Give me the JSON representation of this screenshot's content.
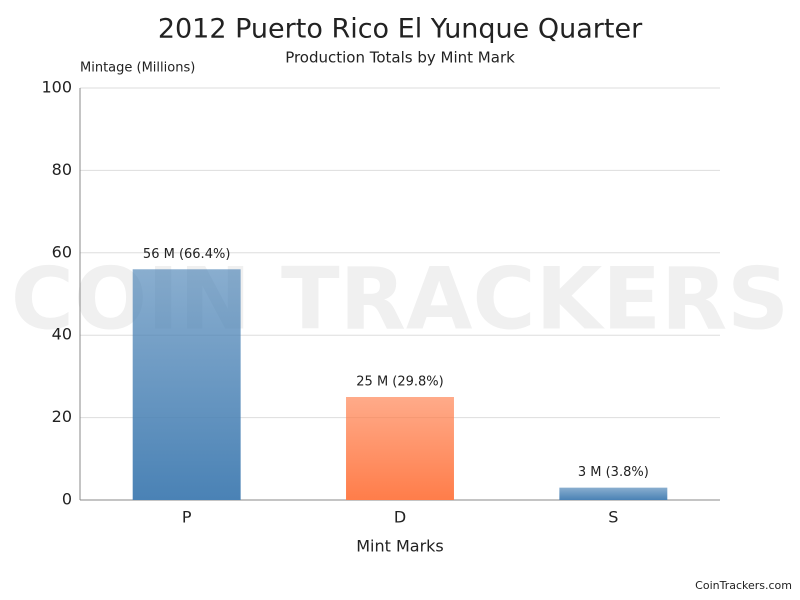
{
  "chart_data": {
    "type": "bar",
    "title": "2012 Puerto Rico El Yunque Quarter",
    "subtitle": "Production Totals by Mint Mark",
    "y_label": "Mintage (Millions)",
    "x_label": "Mint Marks",
    "categories": [
      "P",
      "D",
      "S"
    ],
    "values": [
      56,
      25,
      3
    ],
    "value_labels": [
      "56 M (66.4%)",
      "25 M (29.8%)",
      "3 M (3.8%)"
    ],
    "colors": [
      "#4a82b5",
      "#ff7d4a",
      "#4a82b5"
    ],
    "ylim": [
      0,
      100
    ],
    "yticks": [
      0,
      20,
      40,
      60,
      80,
      100
    ],
    "grid": true,
    "watermark": "COIN TRACKERS",
    "credit": "CoinTrackers.com"
  }
}
